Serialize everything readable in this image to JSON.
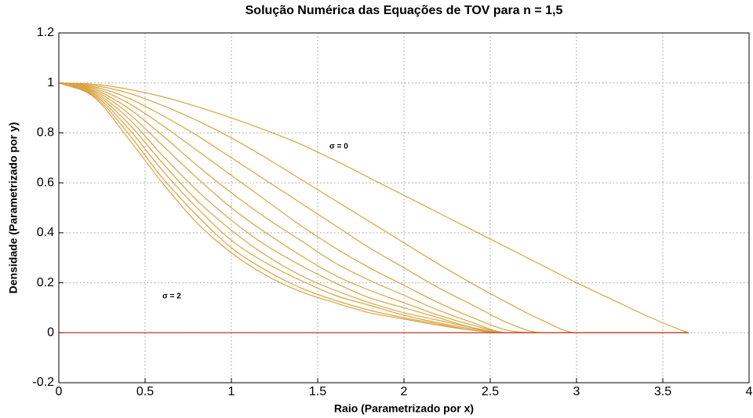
{
  "chart_data": {
    "type": "line",
    "title": "Solução Numérica das Equações de TOV para n = 1,5",
    "x_label": "Raio (Parametrizado por x)",
    "y_label": "Densidade (Parametrizado por y)",
    "x": [
      0,
      0.2,
      0.4,
      0.6,
      0.8,
      1.0,
      1.2,
      1.4,
      1.6,
      1.8,
      2.0,
      2.2,
      2.4,
      2.6,
      2.8,
      3.0,
      3.2,
      3.4,
      3.6,
      3.65
    ],
    "series": [
      {
        "color": "#d9a441",
        "values": [
          1,
          0.995,
          0.975,
          0.945,
          0.905,
          0.86,
          0.81,
          0.755,
          0.69,
          0.62,
          0.55,
          0.48,
          0.41,
          0.34,
          0.27,
          0.2,
          0.135,
          0.07,
          0.012,
          0
        ]
      },
      {
        "color": "#d9a441",
        "values": [
          1,
          0.99,
          0.96,
          0.91,
          0.85,
          0.78,
          0.7,
          0.615,
          0.53,
          0.445,
          0.36,
          0.275,
          0.195,
          0.12,
          0.05,
          0,
          0,
          0,
          0,
          0
        ]
      },
      {
        "color": "#d9a441",
        "values": [
          1,
          0.985,
          0.94,
          0.87,
          0.79,
          0.7,
          0.61,
          0.52,
          0.43,
          0.34,
          0.26,
          0.18,
          0.11,
          0.04,
          0,
          0,
          0,
          0,
          0,
          0
        ]
      },
      {
        "color": "#d9a441",
        "values": [
          1,
          0.98,
          0.92,
          0.83,
          0.73,
          0.63,
          0.53,
          0.43,
          0.34,
          0.26,
          0.19,
          0.12,
          0.06,
          0.01,
          0,
          0,
          0,
          0,
          0,
          0
        ]
      },
      {
        "color": "#d9a441",
        "values": [
          1,
          0.975,
          0.9,
          0.79,
          0.67,
          0.56,
          0.46,
          0.37,
          0.28,
          0.21,
          0.15,
          0.09,
          0.04,
          0,
          0,
          0,
          0,
          0,
          0,
          0
        ]
      },
      {
        "color": "#d9a441",
        "values": [
          1,
          0.97,
          0.88,
          0.75,
          0.62,
          0.5,
          0.4,
          0.31,
          0.23,
          0.17,
          0.12,
          0.07,
          0.03,
          0,
          0,
          0,
          0,
          0,
          0,
          0
        ]
      },
      {
        "color": "#d9a441",
        "values": [
          1,
          0.965,
          0.86,
          0.71,
          0.57,
          0.45,
          0.35,
          0.27,
          0.2,
          0.14,
          0.1,
          0.06,
          0.02,
          0,
          0,
          0,
          0,
          0,
          0,
          0
        ]
      },
      {
        "color": "#d9a441",
        "values": [
          1,
          0.96,
          0.84,
          0.68,
          0.53,
          0.41,
          0.31,
          0.23,
          0.17,
          0.12,
          0.08,
          0.05,
          0.02,
          0,
          0,
          0,
          0,
          0,
          0,
          0
        ]
      },
      {
        "color": "#d9a441",
        "values": [
          1,
          0.955,
          0.82,
          0.65,
          0.5,
          0.37,
          0.28,
          0.21,
          0.15,
          0.11,
          0.07,
          0.04,
          0.015,
          0,
          0,
          0,
          0,
          0,
          0,
          0
        ]
      },
      {
        "color": "#d9a441",
        "values": [
          1,
          0.95,
          0.8,
          0.62,
          0.47,
          0.34,
          0.25,
          0.18,
          0.13,
          0.09,
          0.06,
          0.035,
          0.01,
          0,
          0,
          0,
          0,
          0,
          0,
          0
        ]
      },
      {
        "color": "#d9a441",
        "values": [
          1,
          0.945,
          0.78,
          0.6,
          0.44,
          0.32,
          0.23,
          0.165,
          0.12,
          0.08,
          0.055,
          0.03,
          0.01,
          0,
          0,
          0,
          0,
          0,
          0,
          0
        ]
      },
      {
        "color": "#c0392b",
        "values": [
          0,
          0,
          0,
          0,
          0,
          0,
          0,
          0,
          0,
          0,
          0,
          0,
          0,
          0,
          0,
          0,
          0,
          0,
          0,
          0
        ]
      }
    ],
    "annotations": [
      "σ = 0",
      "σ = 2"
    ],
    "xlim": [
      0,
      4
    ],
    "xticks": [
      0,
      0.5,
      1,
      1.5,
      2,
      2.5,
      3,
      3.5,
      4
    ],
    "ylim": [
      -0.2,
      1.2
    ],
    "yticks": [
      -0.2,
      0,
      0.2,
      0.4,
      0.6,
      0.8,
      1,
      1.2
    ],
    "grid": true
  }
}
